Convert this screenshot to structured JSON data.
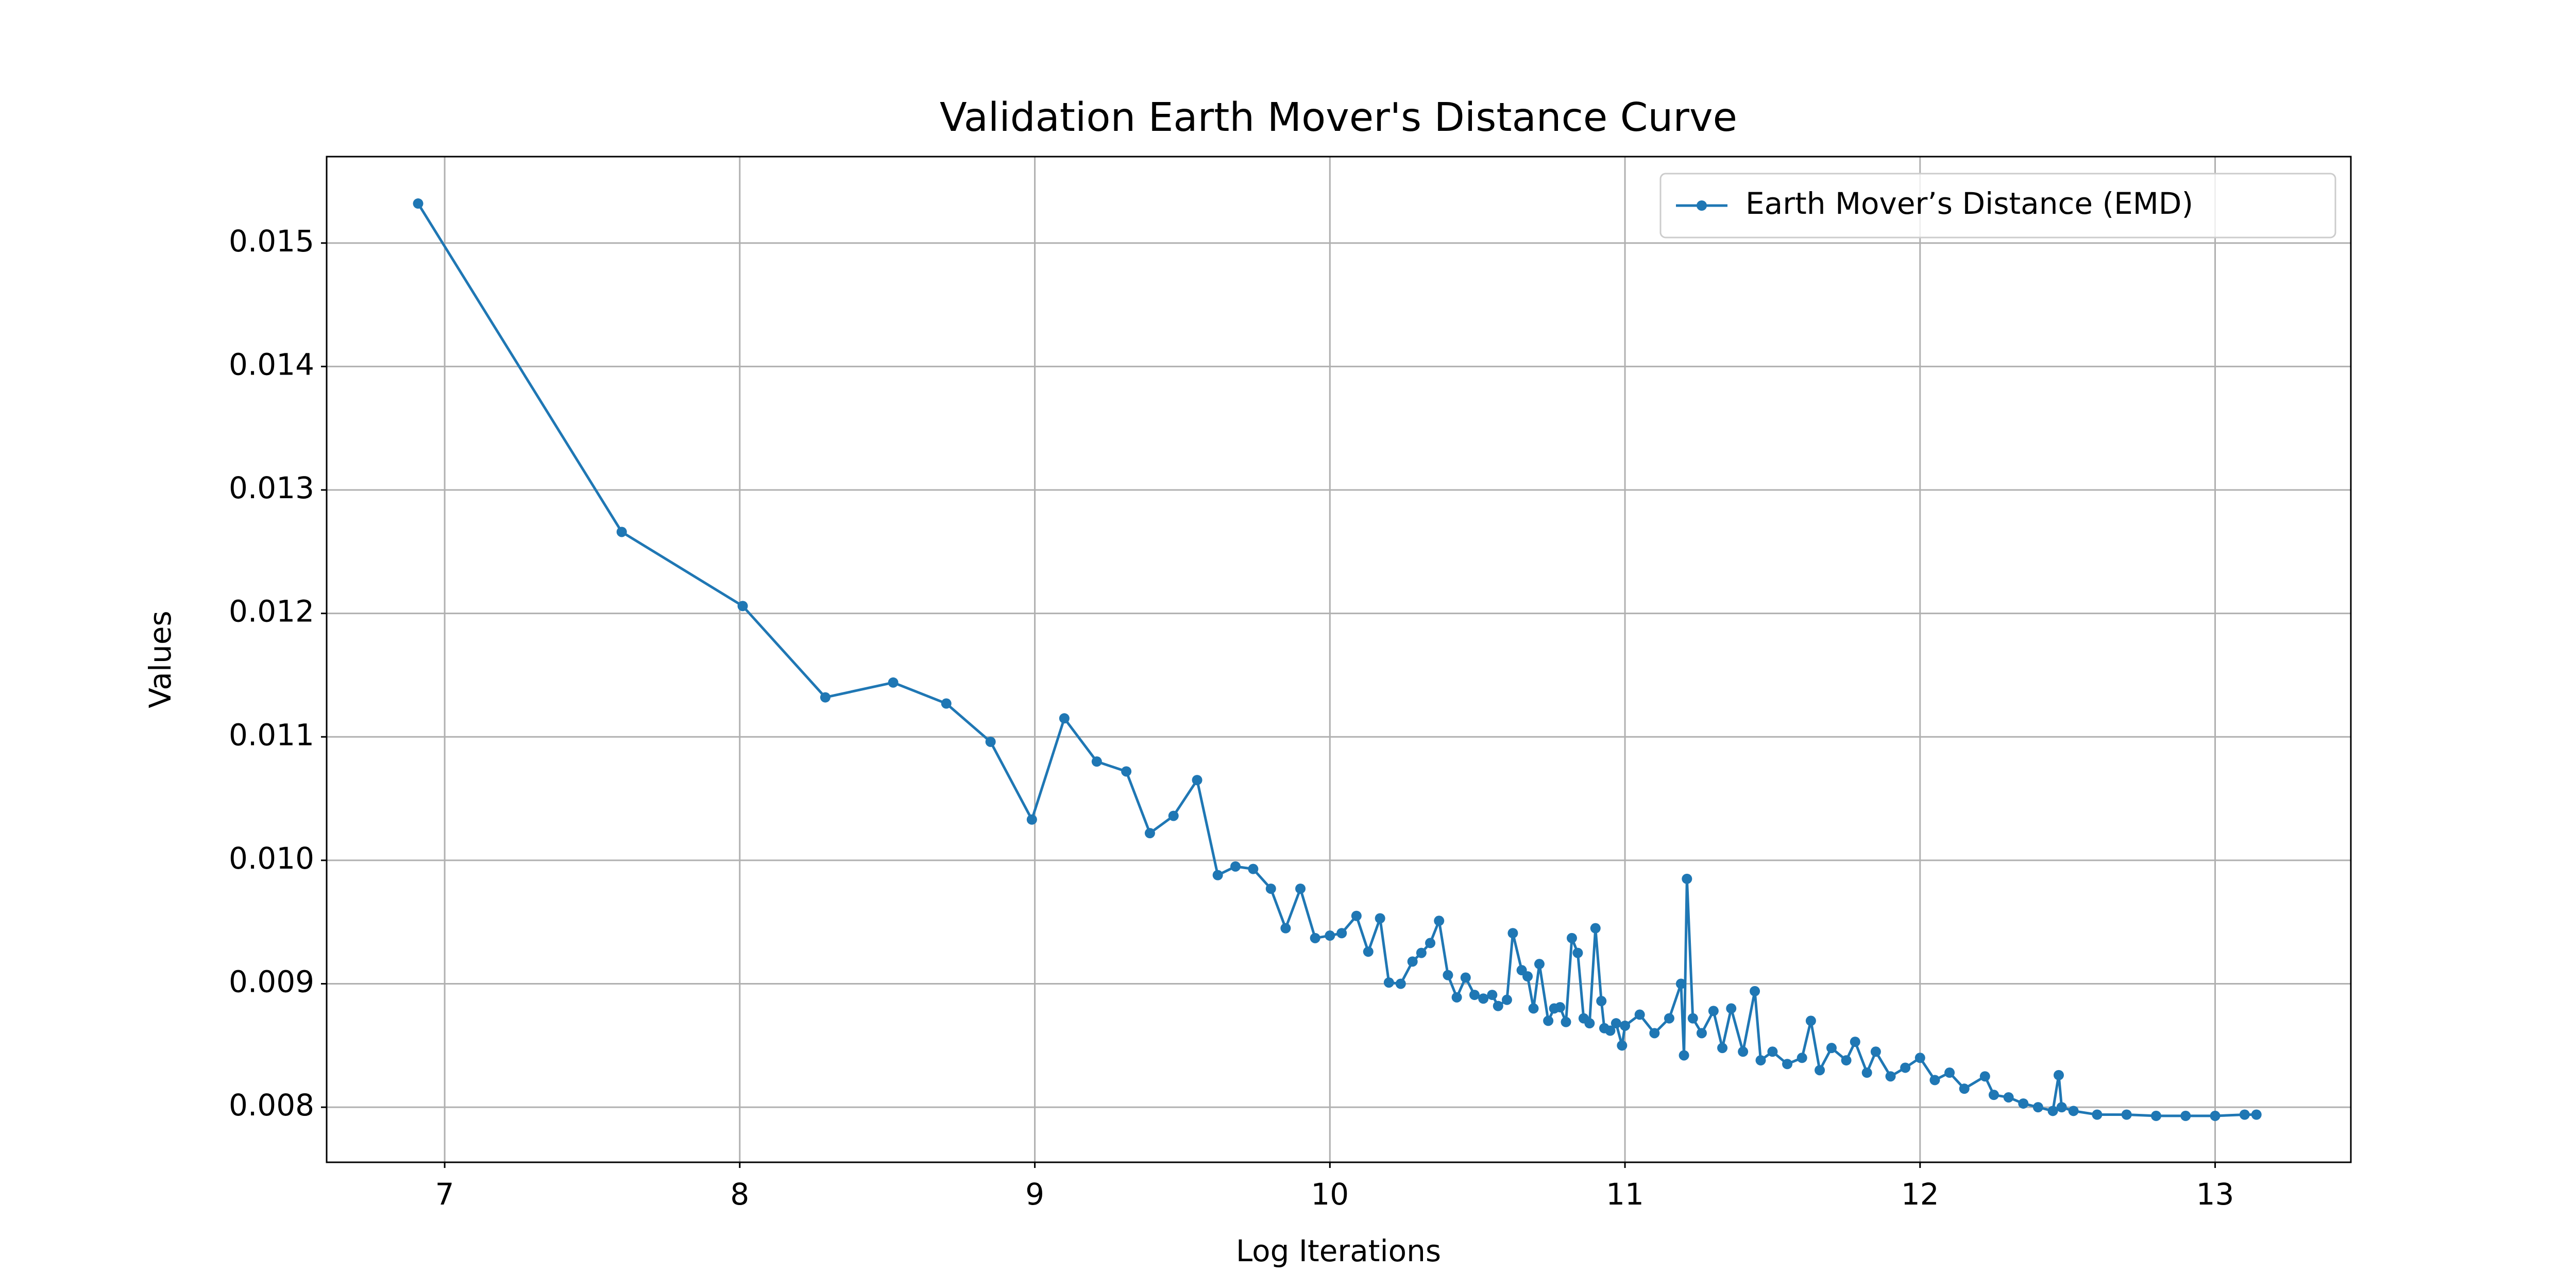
{
  "chart_data": {
    "type": "line",
    "title": "Validation Earth Mover's Distance Curve",
    "x_label": "Log Iterations",
    "y_label": "Values",
    "x": [
      6.91,
      7.6,
      8.01,
      8.29,
      8.52,
      8.7,
      8.85,
      8.99,
      9.1,
      9.21,
      9.31,
      9.39,
      9.47,
      9.55,
      9.62,
      9.68,
      9.74,
      9.8,
      9.85,
      9.9,
      9.95,
      10.0,
      10.04,
      10.09,
      10.13,
      10.17,
      10.2,
      10.24,
      10.28,
      10.31,
      10.34,
      10.37,
      10.4,
      10.43,
      10.46,
      10.49,
      10.52,
      10.55,
      10.57,
      10.6,
      10.62,
      10.65,
      10.67,
      10.69,
      10.71,
      10.74,
      10.76,
      10.78,
      10.8,
      10.82,
      10.84,
      10.86,
      10.88,
      10.9,
      10.92,
      10.93,
      10.95,
      10.97,
      10.99,
      11.0,
      11.05,
      11.1,
      11.15,
      11.19,
      11.2,
      11.21,
      11.23,
      11.26,
      11.3,
      11.33,
      11.36,
      11.4,
      11.44,
      11.46,
      11.5,
      11.55,
      11.6,
      11.63,
      11.66,
      11.7,
      11.75,
      11.78,
      11.82,
      11.85,
      11.9,
      11.95,
      12.0,
      12.05,
      12.1,
      12.15,
      12.22,
      12.25,
      12.3,
      12.35,
      12.4,
      12.45,
      12.47,
      12.48,
      12.52,
      12.6,
      12.7,
      12.8,
      12.9,
      13.0,
      13.1,
      13.14
    ],
    "series": [
      {
        "name": "Earth Mover’s Distance (EMD)",
        "color": "#1f77b4",
        "values": [
          0.01532,
          0.01266,
          0.01206,
          0.01132,
          0.01144,
          0.01127,
          0.01096,
          0.01033,
          0.01115,
          0.0108,
          0.01072,
          0.01022,
          0.01036,
          0.01065,
          0.00988,
          0.00995,
          0.00993,
          0.00977,
          0.00945,
          0.00977,
          0.00937,
          0.00939,
          0.00941,
          0.00955,
          0.00926,
          0.00953,
          0.00901,
          0.009,
          0.00918,
          0.00925,
          0.00933,
          0.00951,
          0.00907,
          0.00889,
          0.00905,
          0.00891,
          0.00888,
          0.00891,
          0.00882,
          0.00887,
          0.00941,
          0.00911,
          0.00906,
          0.0088,
          0.00916,
          0.0087,
          0.0088,
          0.00881,
          0.00869,
          0.00937,
          0.00925,
          0.00872,
          0.00868,
          0.00945,
          0.00886,
          0.00864,
          0.00862,
          0.00868,
          0.0085,
          0.00866,
          0.00875,
          0.0086,
          0.00872,
          0.009,
          0.00842,
          0.00985,
          0.00872,
          0.0086,
          0.00878,
          0.00848,
          0.0088,
          0.00845,
          0.00894,
          0.00838,
          0.00845,
          0.00835,
          0.0084,
          0.0087,
          0.0083,
          0.00848,
          0.00838,
          0.00853,
          0.00828,
          0.00845,
          0.00825,
          0.00832,
          0.0084,
          0.00822,
          0.00828,
          0.00815,
          0.00825,
          0.0081,
          0.00808,
          0.00803,
          0.008,
          0.00797,
          0.00826,
          0.008,
          0.00797,
          0.00794,
          0.00794,
          0.00793,
          0.00793,
          0.00793,
          0.00794,
          0.00794
        ]
      }
    ],
    "xlim": [
      6.6,
      13.46
    ],
    "xticks": [
      7,
      8,
      9,
      10,
      11,
      12,
      13
    ],
    "ylim": [
      0.007554,
      0.0157
    ],
    "yticks": [
      0.008,
      0.009,
      {
        "value": 0.01,
        "label": "0.010"
      },
      0.011,
      0.012,
      0.013,
      0.014,
      0.015
    ],
    "grid": true,
    "legend": "upper right"
  }
}
